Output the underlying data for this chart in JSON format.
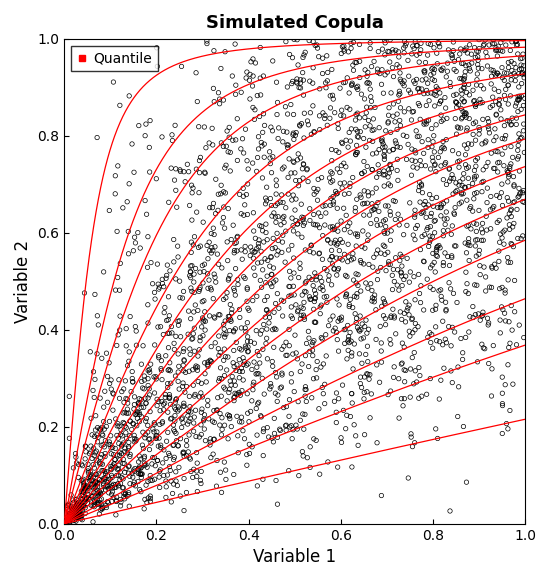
{
  "title": "Simulated Copula",
  "xlabel": "Variable 1",
  "ylabel": "Variable 2",
  "xlim": [
    0,
    1
  ],
  "ylim": [
    0,
    1
  ],
  "n_points": 3000,
  "random_seed": 42,
  "clayton_theta": 2.0,
  "quantile_levels": [
    0.01,
    0.05,
    0.1,
    0.2,
    0.3,
    0.4,
    0.5,
    0.6,
    0.7,
    0.8,
    0.9,
    0.95,
    0.99
  ],
  "curve_color": "#FF0000",
  "point_color": "#000000",
  "point_size": 10,
  "point_linewidth": 0.5,
  "legend_label": "Quantile",
  "background_color": "#FFFFFF",
  "title_fontsize": 13,
  "axis_label_fontsize": 12,
  "tick_fontsize": 10
}
